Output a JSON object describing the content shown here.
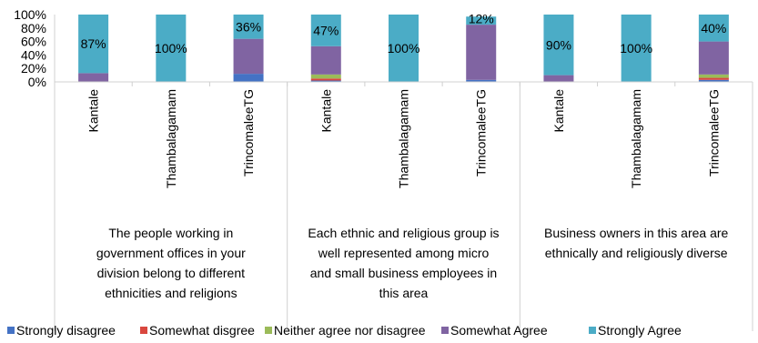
{
  "chart_data": {
    "type": "bar",
    "stacked": true,
    "percent": true,
    "title": "",
    "xlabel": "",
    "ylabel": "",
    "ylim": [
      0,
      100
    ],
    "yticks": [
      "0%",
      "20%",
      "40%",
      "60%",
      "80%",
      "100%"
    ],
    "grid": false,
    "legend_position": "bottom",
    "groups": [
      {
        "label_lines": [
          "The people working in",
          "government offices in your",
          "division belong to different",
          "ethnicities and religions"
        ],
        "categories": [
          "Kantale",
          "Thambalagamam",
          "TrincomaleeTG"
        ]
      },
      {
        "label_lines": [
          "Each ethnic and religious group is",
          "well represented among micro",
          "and small business employees in",
          "this area"
        ],
        "categories": [
          "Kantale",
          "Thambalagamam",
          "TrincomaleeTG"
        ]
      },
      {
        "label_lines": [
          "Business owners in this area are",
          "ethnically and religiously diverse"
        ],
        "categories": [
          "Kantale",
          "Thambalagamam",
          "TrincomaleeTG"
        ]
      }
    ],
    "series": [
      {
        "name": "Strongly disagree",
        "color": "#4472C4",
        "values": [
          0,
          0,
          12,
          2,
          0,
          3,
          0,
          0,
          3
        ]
      },
      {
        "name": "Somewhat disgree",
        "color": "#D9473F",
        "values": [
          0,
          0,
          0,
          3,
          0,
          0,
          0,
          0,
          3
        ]
      },
      {
        "name": "Neither agree nor disagree",
        "color": "#9BBB59",
        "values": [
          0,
          0,
          0,
          6,
          0,
          0,
          0,
          0,
          5
        ]
      },
      {
        "name": "Somewhat Agree",
        "color": "#8064A2",
        "values": [
          13,
          0,
          52,
          42,
          0,
          82,
          10,
          0,
          49
        ]
      },
      {
        "name": "Strongly Agree",
        "color": "#4BACC6",
        "values": [
          87,
          100,
          36,
          47,
          100,
          12,
          90,
          100,
          40
        ]
      }
    ],
    "data_labels": [
      "87%",
      "100%",
      "36%",
      "47%",
      "100%",
      "12%",
      "90%",
      "100%",
      "40%"
    ]
  }
}
